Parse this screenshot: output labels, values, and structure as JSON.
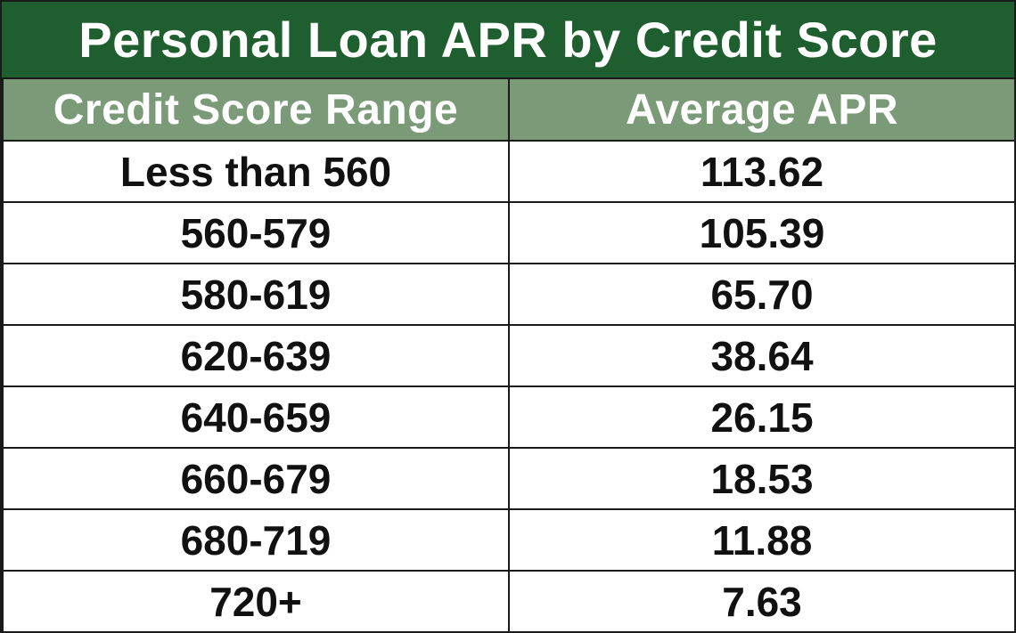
{
  "title": "Personal Loan APR by Credit Score",
  "colors": {
    "title_background": "#1e5e2f",
    "header_background": "#7b9a78",
    "header_text": "#ffffff",
    "cell_text": "#111111",
    "grid_lines": "#1a1a1a"
  },
  "chart_data": {
    "type": "table",
    "title": "Personal Loan APR by Credit Score",
    "columns": [
      "Credit Score Range",
      "Average APR"
    ],
    "rows": [
      [
        "Less than 560",
        "113.62"
      ],
      [
        "560-579",
        "105.39"
      ],
      [
        "580-619",
        "65.70"
      ],
      [
        "620-639",
        "38.64"
      ],
      [
        "640-659",
        "26.15"
      ],
      [
        "660-679",
        "18.53"
      ],
      [
        "680-719",
        "11.88"
      ],
      [
        "720+",
        "7.63"
      ]
    ]
  }
}
